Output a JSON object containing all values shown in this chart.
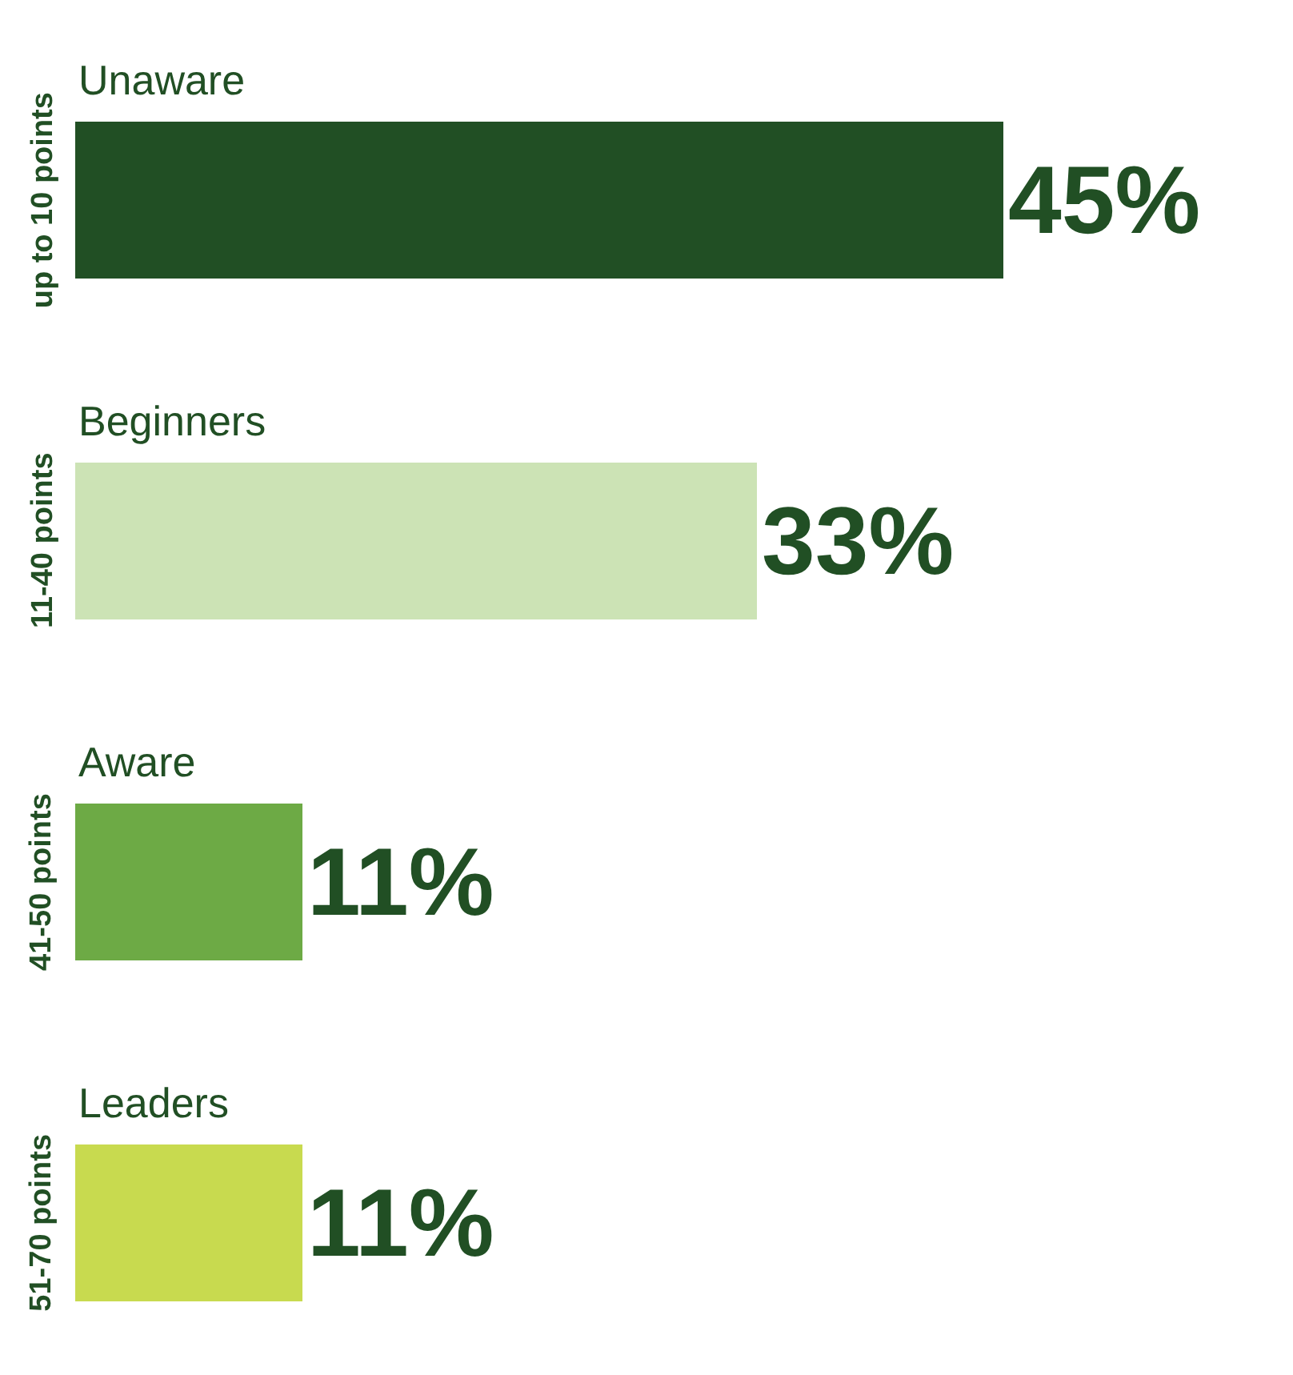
{
  "chart_data": {
    "type": "bar",
    "orientation": "horizontal",
    "categories": [
      "Unaware",
      "Beginners",
      "Aware",
      "Leaders"
    ],
    "values": [
      45,
      33,
      11,
      11
    ],
    "value_labels": [
      "45%",
      "33%",
      "11%",
      "11%"
    ],
    "colors": [
      "#214f24",
      "#cce3b5",
      "#6daa45",
      "#c8da4f"
    ],
    "tick_labels": false,
    "legend": false,
    "annotations": [
      "up to 10 points",
      "11-40 points",
      "41-50 points",
      "51-70 points"
    ]
  }
}
